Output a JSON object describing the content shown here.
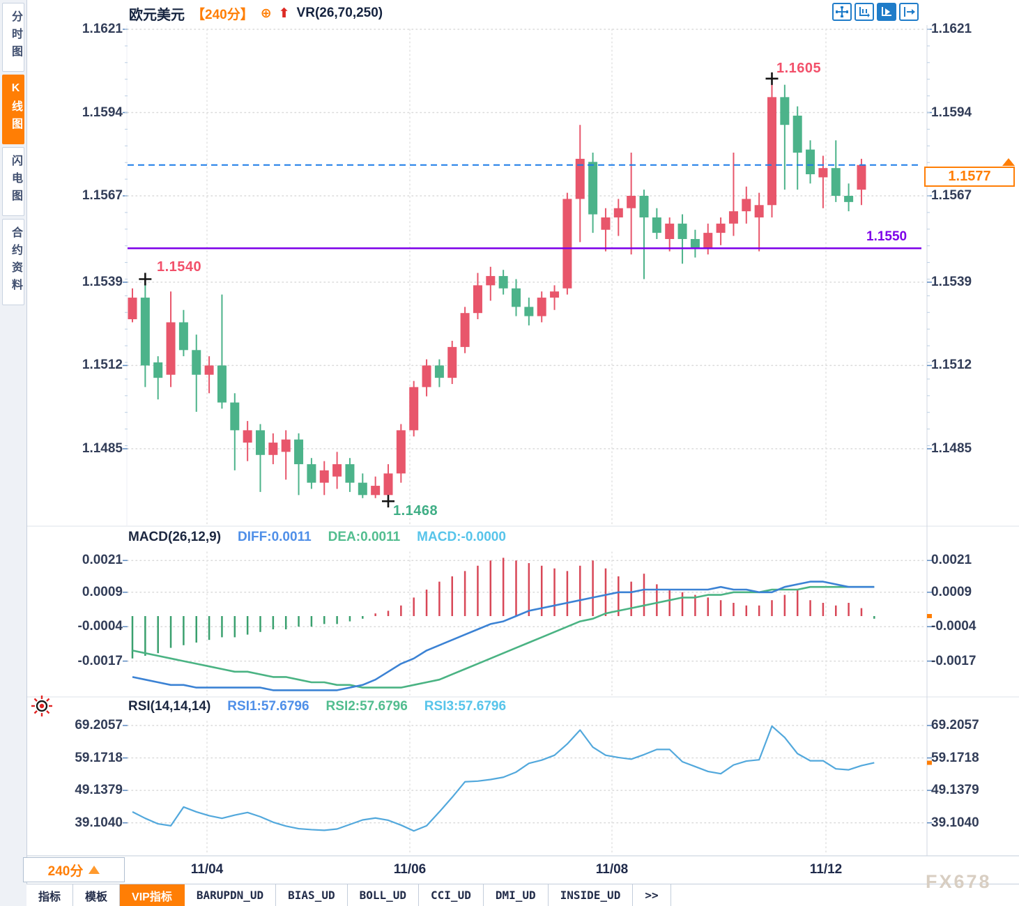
{
  "sidebar": {
    "tabs": [
      {
        "label": "分时图",
        "active": false
      },
      {
        "label": "K线图",
        "active": true
      },
      {
        "label": "闪电图",
        "active": false
      },
      {
        "label": "合约资料",
        "active": false
      }
    ]
  },
  "header": {
    "symbol": "欧元美元",
    "interval": "【240分】",
    "plus_icon": "⊕",
    "up_arrow_icon": "⬆",
    "indicator": "VR(26,70,250)"
  },
  "toolbar": {
    "icons": [
      "crosshair-tool-icon",
      "axis-range-icon",
      "axis-auto-scale-icon",
      "scroll-right-icon"
    ],
    "active_index": 2
  },
  "colors": {
    "up_candle": "#e8566b",
    "down_candle": "#4cb38a",
    "accent_orange": "#ff7e05",
    "current_price_line": "#1b7ce8",
    "support_line": "#7d00e8",
    "macd_pos_bar": "#d84757",
    "macd_neg_bar": "#3aa06e",
    "diff_line": "#3b82d4",
    "dea_line": "#4ab383",
    "rsi_line": "#52a8dc",
    "marker_red": "#f2506a",
    "marker_green": "#3fae85"
  },
  "main_chart": {
    "y_axis": [
      "1.1621",
      "1.1594",
      "1.1567",
      "1.1539",
      "1.1512",
      "1.1485"
    ],
    "x_axis": [
      "11/04",
      "11/06",
      "11/08",
      "11/12"
    ],
    "current_price": "1.1577",
    "support_price": "1.1550",
    "markers": [
      {
        "label": "1.1605",
        "candle_index": 50,
        "price": 1.1605,
        "position": "above",
        "color": "#f2506a"
      },
      {
        "label": "1.1540",
        "candle_index": 1,
        "price": 1.154,
        "position": "above",
        "color": "#f2506a"
      },
      {
        "label": "1.1468",
        "candle_index": 20,
        "price": 1.1468,
        "position": "below",
        "color": "#3fae85"
      }
    ]
  },
  "macd_panel": {
    "title": "MACD(26,12,9)",
    "diff_label": "DIFF:0.0011",
    "dea_label": "DEA:0.0011",
    "macd_label": "MACD:-0.0000",
    "y_axis": [
      "0.0021",
      "0.0009",
      "-0.0004",
      "-0.0017"
    ]
  },
  "rsi_panel": {
    "title": "RSI(14,14,14)",
    "rsi1_label": "RSI1:57.6796",
    "rsi2_label": "RSI2:57.6796",
    "rsi3_label": "RSI3:57.6796",
    "y_axis": [
      "69.2057",
      "59.1718",
      "49.1379",
      "39.1040"
    ]
  },
  "bottom": {
    "interval": "240分",
    "tabs": [
      {
        "label": "指标",
        "active": false
      },
      {
        "label": "模板",
        "active": false
      },
      {
        "label": "VIP指标",
        "active": true
      },
      {
        "label": "BARUPDN_UD",
        "active": false
      },
      {
        "label": "BIAS_UD",
        "active": false
      },
      {
        "label": "BOLL_UD",
        "active": false
      },
      {
        "label": "CCI_UD",
        "active": false
      },
      {
        "label": "DMI_UD",
        "active": false
      },
      {
        "label": "INSIDE_UD",
        "active": false
      },
      {
        "label": ">>",
        "active": false
      }
    ]
  },
  "watermark": "FX678",
  "chart_data": [
    {
      "type": "candlestick",
      "title": "欧元美元 240分",
      "ohlc_order": "[open, high, low, close]",
      "up_color_rule": "close >= open drawn red (CN convention)",
      "ylim": [
        1.1468,
        1.1621
      ],
      "x_labels": [
        "11/04",
        "11/06",
        "11/08",
        "11/12"
      ],
      "candles": [
        [
          1.1527,
          1.1537,
          1.1526,
          1.1534
        ],
        [
          1.1534,
          1.154,
          1.1505,
          1.1512
        ],
        [
          1.1513,
          1.1515,
          1.1501,
          1.1508
        ],
        [
          1.1509,
          1.1536,
          1.1505,
          1.1526
        ],
        [
          1.1526,
          1.153,
          1.1515,
          1.1517
        ],
        [
          1.1517,
          1.1522,
          1.1497,
          1.1509
        ],
        [
          1.1509,
          1.1515,
          1.1503,
          1.1512
        ],
        [
          1.1512,
          1.1535,
          1.1498,
          1.15
        ],
        [
          1.15,
          1.1503,
          1.1478,
          1.1491
        ],
        [
          1.1487,
          1.1494,
          1.1481,
          1.1491
        ],
        [
          1.1491,
          1.1493,
          1.1471,
          1.1483
        ],
        [
          1.1483,
          1.149,
          1.148,
          1.1487
        ],
        [
          1.1484,
          1.1491,
          1.1475,
          1.1488
        ],
        [
          1.1488,
          1.149,
          1.147,
          1.148
        ],
        [
          1.148,
          1.1482,
          1.1472,
          1.1474
        ],
        [
          1.1474,
          1.1481,
          1.147,
          1.1478
        ],
        [
          1.1476,
          1.1484,
          1.1472,
          1.148
        ],
        [
          1.148,
          1.1482,
          1.1471,
          1.1474
        ],
        [
          1.1474,
          1.1477,
          1.1469,
          1.147
        ],
        [
          1.147,
          1.1476,
          1.1469,
          1.1473
        ],
        [
          1.147,
          1.148,
          1.1468,
          1.1477
        ],
        [
          1.1477,
          1.1493,
          1.1474,
          1.1491
        ],
        [
          1.1491,
          1.1507,
          1.1489,
          1.1505
        ],
        [
          1.1505,
          1.1514,
          1.1502,
          1.1512
        ],
        [
          1.1512,
          1.1514,
          1.1505,
          1.1508
        ],
        [
          1.1508,
          1.152,
          1.1506,
          1.1518
        ],
        [
          1.1518,
          1.1531,
          1.1516,
          1.1529
        ],
        [
          1.1529,
          1.1542,
          1.1527,
          1.1538
        ],
        [
          1.1538,
          1.1544,
          1.1533,
          1.1541
        ],
        [
          1.1541,
          1.1543,
          1.1535,
          1.1537
        ],
        [
          1.1537,
          1.154,
          1.1528,
          1.1531
        ],
        [
          1.1531,
          1.1534,
          1.1525,
          1.1528
        ],
        [
          1.1528,
          1.1536,
          1.1526,
          1.1534
        ],
        [
          1.1534,
          1.1538,
          1.153,
          1.1536
        ],
        [
          1.1537,
          1.1568,
          1.1535,
          1.1566
        ],
        [
          1.1566,
          1.159,
          1.1552,
          1.1579
        ],
        [
          1.1578,
          1.1581,
          1.1555,
          1.1561
        ],
        [
          1.1556,
          1.1563,
          1.1549,
          1.156
        ],
        [
          1.156,
          1.1566,
          1.1554,
          1.1563
        ],
        [
          1.1563,
          1.1581,
          1.1548,
          1.1567
        ],
        [
          1.1567,
          1.1569,
          1.154,
          1.156
        ],
        [
          1.156,
          1.1563,
          1.1553,
          1.1555
        ],
        [
          1.1553,
          1.156,
          1.1549,
          1.1558
        ],
        [
          1.1558,
          1.1561,
          1.1545,
          1.1553
        ],
        [
          1.1553,
          1.1556,
          1.1547,
          1.155
        ],
        [
          1.155,
          1.1558,
          1.1548,
          1.1555
        ],
        [
          1.1555,
          1.156,
          1.1551,
          1.1558
        ],
        [
          1.1558,
          1.1581,
          1.1554,
          1.1562
        ],
        [
          1.1562,
          1.157,
          1.1558,
          1.1566
        ],
        [
          1.156,
          1.1568,
          1.1549,
          1.1564
        ],
        [
          1.1564,
          1.1605,
          1.156,
          1.1599
        ],
        [
          1.1599,
          1.1603,
          1.1569,
          1.159
        ],
        [
          1.1593,
          1.1596,
          1.1569,
          1.1581
        ],
        [
          1.1582,
          1.1585,
          1.1571,
          1.1574
        ],
        [
          1.1573,
          1.158,
          1.1563,
          1.1576
        ],
        [
          1.1576,
          1.1585,
          1.1565,
          1.1567
        ],
        [
          1.1567,
          1.1571,
          1.1562,
          1.1565
        ],
        [
          1.1569,
          1.1579,
          1.1564,
          1.1577
        ]
      ],
      "current_price": 1.1577,
      "support_line": 1.155
    },
    {
      "type": "bar",
      "title": "MACD(26,12,9)",
      "ylim": [
        -0.0029,
        0.0022
      ],
      "histogram": [
        -0.0016,
        -0.0015,
        -0.0014,
        -0.0012,
        -0.0011,
        -0.001,
        -0.0009,
        -0.0008,
        -0.0008,
        -0.0007,
        -0.0006,
        -0.0005,
        -0.0005,
        -0.0004,
        -0.0004,
        -0.0003,
        -0.0003,
        -0.0002,
        -0.0001,
        0.0001,
        0.0002,
        0.0004,
        0.0007,
        0.001,
        0.0013,
        0.0015,
        0.0017,
        0.0019,
        0.0021,
        0.0022,
        0.0021,
        0.002,
        0.0019,
        0.0018,
        0.0017,
        0.0019,
        0.0021,
        0.0018,
        0.0015,
        0.0013,
        0.0016,
        0.0012,
        0.001,
        0.0009,
        0.0008,
        0.0007,
        0.0006,
        0.0005,
        0.0004,
        0.0004,
        0.0006,
        0.0008,
        0.001,
        0.0006,
        0.0005,
        0.0004,
        0.0005,
        0.0003,
        -0.0001
      ],
      "series": [
        {
          "name": "DIFF",
          "values": [
            -0.0023,
            -0.0024,
            -0.0025,
            -0.0026,
            -0.0026,
            -0.0027,
            -0.0027,
            -0.0027,
            -0.0027,
            -0.0027,
            -0.0027,
            -0.0028,
            -0.0028,
            -0.0028,
            -0.0028,
            -0.0028,
            -0.0028,
            -0.0027,
            -0.0026,
            -0.0024,
            -0.0021,
            -0.0018,
            -0.0016,
            -0.0013,
            -0.0011,
            -0.0009,
            -0.0007,
            -0.0005,
            -0.0003,
            -0.0002,
            0.0,
            0.0002,
            0.0003,
            0.0004,
            0.0005,
            0.0006,
            0.0007,
            0.0008,
            0.0009,
            0.0009,
            0.001,
            0.001,
            0.001,
            0.001,
            0.001,
            0.001,
            0.0011,
            0.001,
            0.001,
            0.0009,
            0.0009,
            0.0011,
            0.0012,
            0.0013,
            0.0013,
            0.0012,
            0.0011,
            0.0011,
            0.0011
          ]
        },
        {
          "name": "DEA",
          "values": [
            -0.0013,
            -0.0014,
            -0.0015,
            -0.0016,
            -0.0017,
            -0.0018,
            -0.0019,
            -0.002,
            -0.0021,
            -0.0021,
            -0.0022,
            -0.0023,
            -0.0023,
            -0.0024,
            -0.0025,
            -0.0025,
            -0.0026,
            -0.0026,
            -0.0027,
            -0.0027,
            -0.0027,
            -0.0027,
            -0.0026,
            -0.0025,
            -0.0024,
            -0.0022,
            -0.002,
            -0.0018,
            -0.0016,
            -0.0014,
            -0.0012,
            -0.001,
            -0.0008,
            -0.0006,
            -0.0004,
            -0.0002,
            -0.0001,
            0.0001,
            0.0002,
            0.0003,
            0.0004,
            0.0005,
            0.0006,
            0.0007,
            0.0007,
            0.0008,
            0.0008,
            0.0009,
            0.0009,
            0.0009,
            0.001,
            0.001,
            0.001,
            0.0011,
            0.0011,
            0.0011,
            0.0011,
            0.0011,
            0.0011
          ]
        }
      ]
    },
    {
      "type": "line",
      "title": "RSI(14,14,14)",
      "ylim": [
        36,
        70
      ],
      "values": [
        42.5,
        40.5,
        38.8,
        38.2,
        44.0,
        42.5,
        41.3,
        40.5,
        41.5,
        42.3,
        41.0,
        39.3,
        38.1,
        37.3,
        37.0,
        36.8,
        37.2,
        38.6,
        40.0,
        40.6,
        39.9,
        38.4,
        36.6,
        38.2,
        42.5,
        47.0,
        51.8,
        52.0,
        52.5,
        53.2,
        54.8,
        57.5,
        58.5,
        60.0,
        63.5,
        67.8,
        62.5,
        60.0,
        59.3,
        58.8,
        60.2,
        61.8,
        61.8,
        58.0,
        56.5,
        55.0,
        54.3,
        57.0,
        58.2,
        58.6,
        69.0,
        65.5,
        60.5,
        58.3,
        58.3,
        55.8,
        55.5,
        56.8,
        57.7
      ],
      "current_value": 57.6796
    }
  ]
}
